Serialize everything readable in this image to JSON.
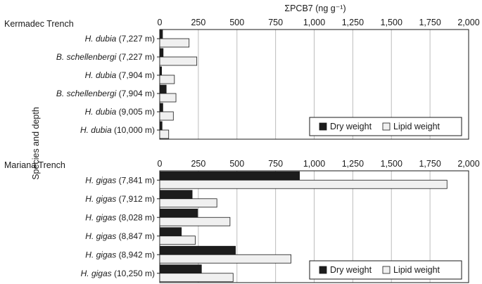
{
  "chart_data": {
    "type": "bar",
    "orientation": "horizontal",
    "axis_title": "ΣPCB7 (ng g⁻¹)",
    "ylabel": "Species and depth",
    "xlim": [
      0,
      2000
    ],
    "ticks": [
      "0",
      "250",
      "500",
      "750",
      "1,000",
      "1,250",
      "1,500",
      "1,750",
      "2,000"
    ],
    "tick_values": [
      0,
      250,
      500,
      750,
      1000,
      1250,
      1500,
      1750,
      2000
    ],
    "grid": true,
    "legend_position": "bottom-right",
    "series_colors": [
      "#1c1c1c",
      "#f0f0f0"
    ],
    "legend": [
      "Dry weight",
      "Lipid weight"
    ],
    "panels": [
      {
        "title": "Kermadec Trench",
        "categories": [
          {
            "species": "H. dubia",
            "depth": "(7,227 m)"
          },
          {
            "species": "B. schellenbergi",
            "depth": "(7,227 m)"
          },
          {
            "species": "H. dubia",
            "depth": "(7,904 m)"
          },
          {
            "species": "B. schellenbergi",
            "depth": "(7,904 m)"
          },
          {
            "species": "H. dubia",
            "depth": "(9,005 m)"
          },
          {
            "species": "H. dubia",
            "depth": "(10,000 m)"
          }
        ],
        "series": [
          {
            "values": [
              18,
              22,
              12,
              42,
              20,
              15
            ]
          },
          {
            "values": [
              190,
              240,
              95,
              105,
              88,
              58
            ]
          }
        ]
      },
      {
        "title": "Mariana Trench",
        "categories": [
          {
            "species": "H. gigas",
            "depth": "(7,841 m)"
          },
          {
            "species": "H. gigas",
            "depth": "(7,912 m)"
          },
          {
            "species": "H. gigas",
            "depth": "(8,028 m)"
          },
          {
            "species": "H. gigas",
            "depth": "(8,847 m)"
          },
          {
            "species": "H. gigas",
            "depth": "(8,942 m)"
          },
          {
            "species": "H. gigas",
            "depth": "(10,250 m)"
          }
        ],
        "series": [
          {
            "values": [
              905,
              210,
              245,
              140,
              490,
              270
            ]
          },
          {
            "values": [
              1860,
              370,
              455,
              230,
              850,
              475
            ]
          }
        ]
      }
    ]
  }
}
